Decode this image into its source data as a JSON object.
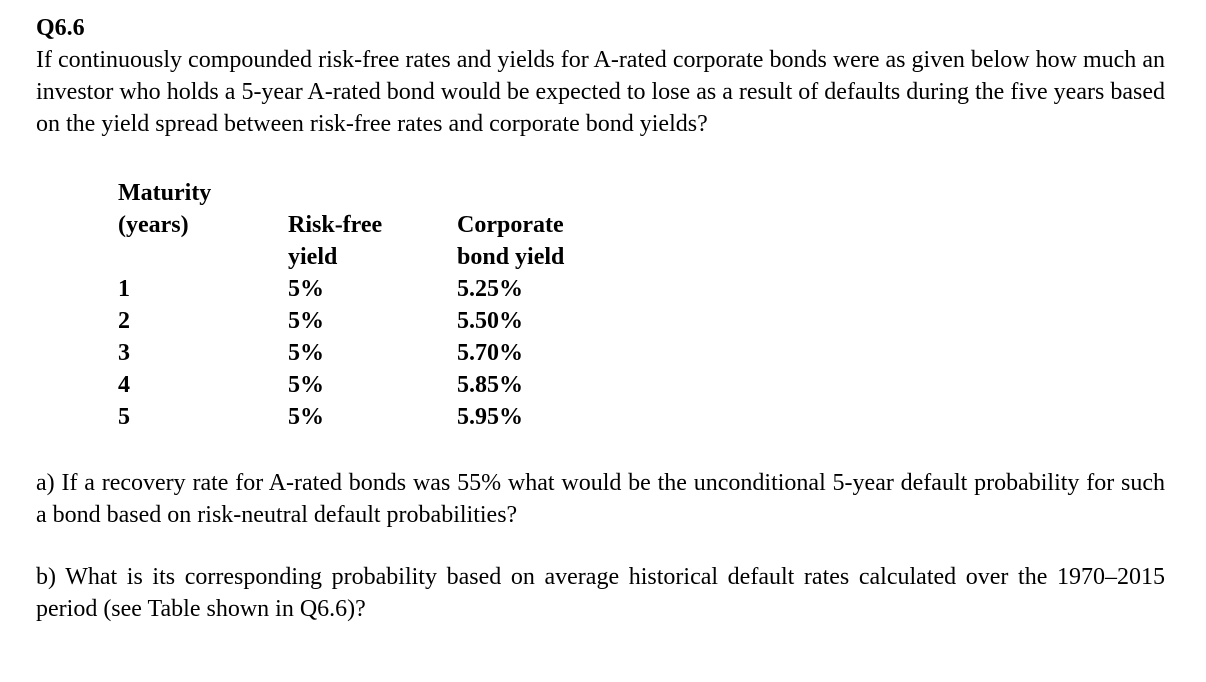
{
  "page": {
    "background_color": "#ffffff",
    "text_color": "#000000"
  },
  "document": {
    "question_id": "Q6.6",
    "intro": "If continuously compounded risk-free rates and yields for A-rated corporate bonds were as given below how much an investor who holds a 5-year A-rated bond would be expected to lose as a result of defaults during the five years based on the yield spread between risk-free rates and corporate bond yields?",
    "table": {
      "headers": {
        "maturity": [
          "Maturity",
          "(years)"
        ],
        "risk_free": [
          "Risk-free",
          "yield"
        ],
        "corporate": [
          "Corporate",
          "bond yield"
        ]
      },
      "rows": [
        {
          "maturity": "1",
          "risk_free_yield": "5%",
          "corporate_bond_yield": "5.25%"
        },
        {
          "maturity": "2",
          "risk_free_yield": "5%",
          "corporate_bond_yield": "5.50%"
        },
        {
          "maturity": "3",
          "risk_free_yield": "5%",
          "corporate_bond_yield": "5.70%"
        },
        {
          "maturity": "4",
          "risk_free_yield": "5%",
          "corporate_bond_yield": "5.85%"
        },
        {
          "maturity": "5",
          "risk_free_yield": "5%",
          "corporate_bond_yield": "5.95%"
        }
      ]
    },
    "part_a": "a) If a recovery rate for A-rated bonds was 55% what would be the unconditional 5-year default probability for such a bond based on risk-neutral default probabilities?",
    "part_b": "b) What is its corresponding probability based on average historical default rates calculated over the 1970–2015 period (see Table shown in Q6.6)?"
  }
}
